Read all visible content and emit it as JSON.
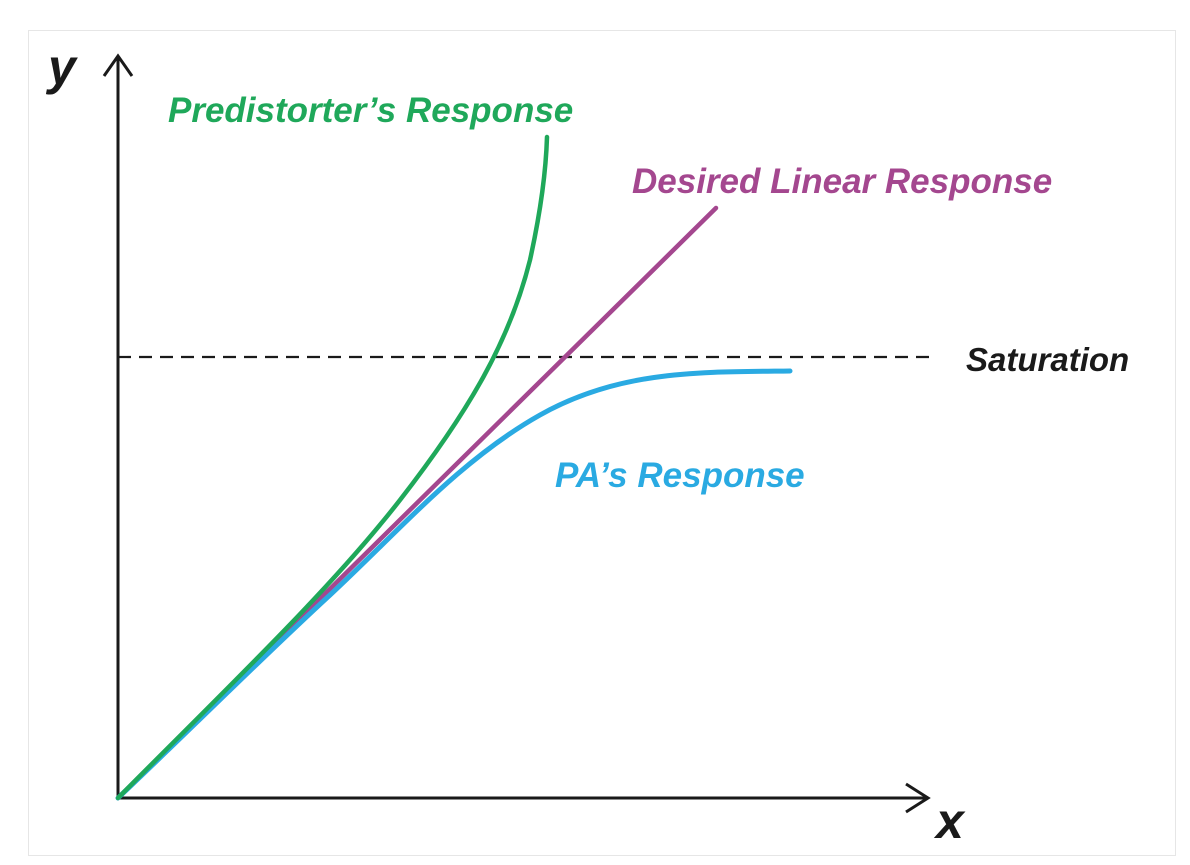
{
  "axes": {
    "y_label": "y",
    "x_label": "x"
  },
  "labels": {
    "predistorter": "Predistorter’s Response",
    "desired_linear": "Desired Linear Response",
    "saturation": "Saturation",
    "pa": "PA’s Response"
  },
  "colors": {
    "predistorter": "#1fa85a",
    "desired_linear": "#a4478f",
    "pa": "#2aaae2",
    "axis": "#1a1a1a",
    "saturation": "#1a1a1a"
  }
}
